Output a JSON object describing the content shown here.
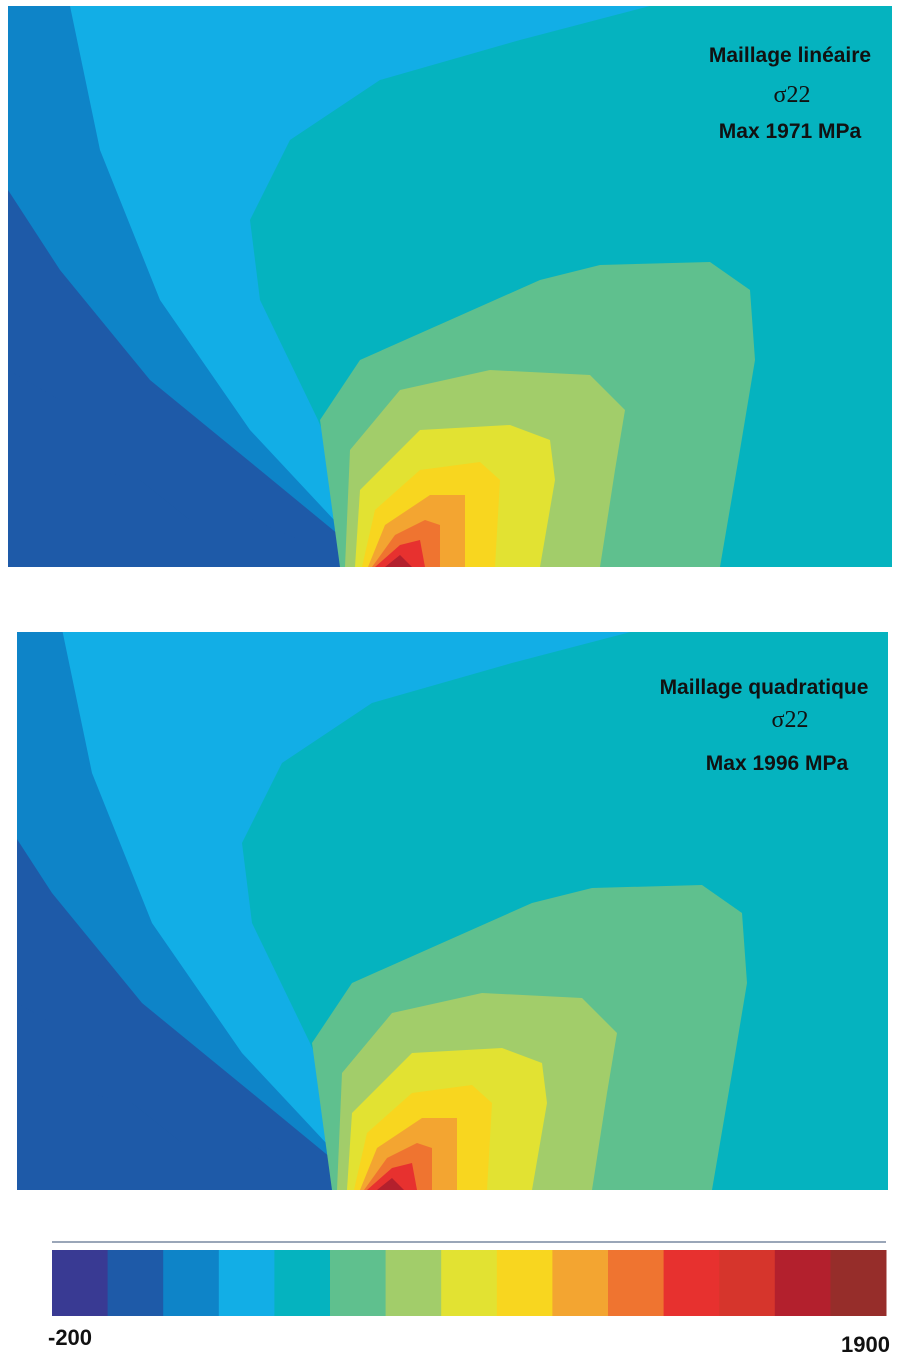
{
  "panels": [
    {
      "label": "Maillage linéaire",
      "quantity": "σ22",
      "max": "Max 1971 MPa"
    },
    {
      "label": "Maillage quadratique",
      "quantity": "σ22",
      "max": "Max 1996 MPa"
    }
  ],
  "colorbar": {
    "min": -200,
    "max": 1900,
    "colors": [
      "#393a93",
      "#1e5aa8",
      "#0e84c8",
      "#12aee6",
      "#05b3bf",
      "#5fc08e",
      "#a2cd6a",
      "#e2e232",
      "#f8d61f",
      "#f3a531",
      "#ef7430",
      "#e7312f",
      "#d6352c",
      "#b3202d",
      "#962d2a"
    ]
  }
}
